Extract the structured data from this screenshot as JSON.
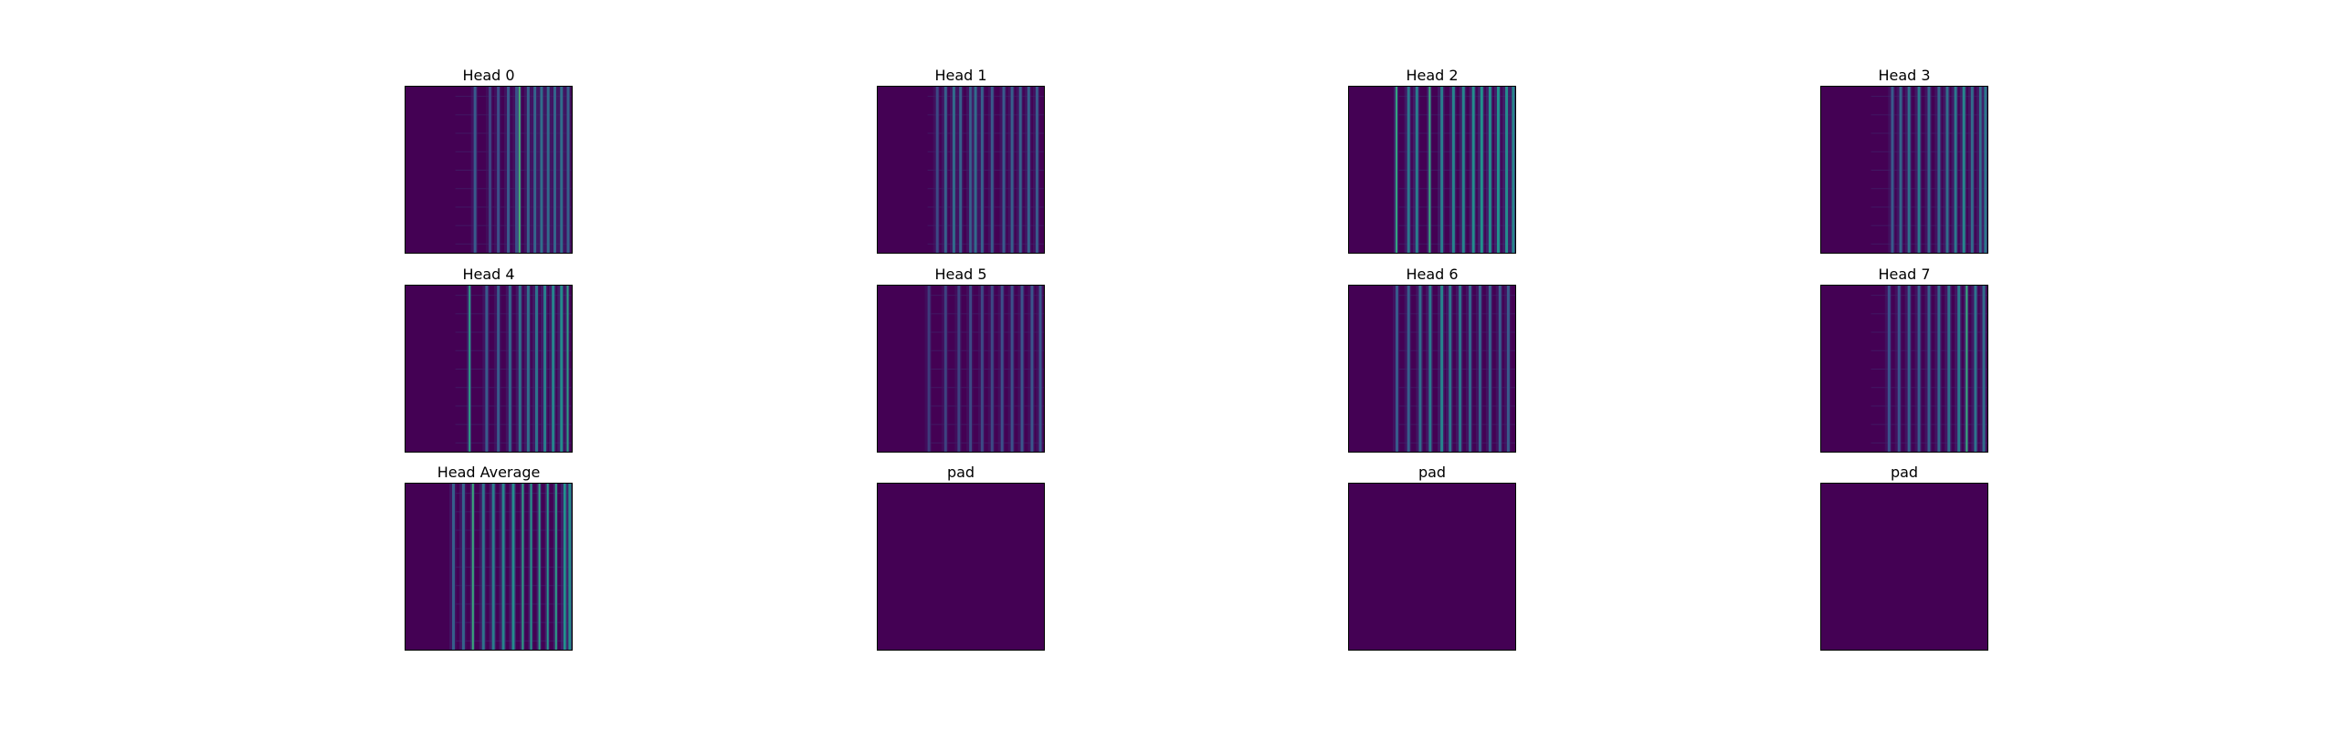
{
  "chart_data": {
    "type": "heatmap",
    "colormap": "viridis",
    "colors": {
      "low": "#440154",
      "mid_low": "#3b528b",
      "mid": "#21918c",
      "mid_high": "#5ec962",
      "high": "#fde725",
      "background": "#ffffff",
      "frame": "#000000"
    },
    "layout": {
      "rows": 3,
      "cols": 4
    },
    "axes_visible": false,
    "legend": "none",
    "panels": [
      {
        "title": "Head 0",
        "bands": [
          {
            "x": 0.41,
            "i": 0.28
          },
          {
            "x": 0.5,
            "i": 0.2
          },
          {
            "x": 0.55,
            "i": 0.24
          },
          {
            "x": 0.61,
            "i": 0.28
          },
          {
            "x": 0.66,
            "i": 0.26
          },
          {
            "x": 0.68,
            "i": 0.65
          },
          {
            "x": 0.73,
            "i": 0.3
          },
          {
            "x": 0.77,
            "i": 0.32
          },
          {
            "x": 0.81,
            "i": 0.36
          },
          {
            "x": 0.85,
            "i": 0.34
          },
          {
            "x": 0.89,
            "i": 0.32
          },
          {
            "x": 0.93,
            "i": 0.36
          },
          {
            "x": 0.97,
            "i": 0.3
          }
        ]
      },
      {
        "title": "Head 1",
        "bands": [
          {
            "x": 0.35,
            "i": 0.22
          },
          {
            "x": 0.4,
            "i": 0.3
          },
          {
            "x": 0.45,
            "i": 0.35
          },
          {
            "x": 0.49,
            "i": 0.3
          },
          {
            "x": 0.55,
            "i": 0.3
          },
          {
            "x": 0.58,
            "i": 0.35
          },
          {
            "x": 0.62,
            "i": 0.3
          },
          {
            "x": 0.68,
            "i": 0.28
          },
          {
            "x": 0.75,
            "i": 0.28
          },
          {
            "x": 0.8,
            "i": 0.3
          },
          {
            "x": 0.85,
            "i": 0.3
          },
          {
            "x": 0.9,
            "i": 0.3
          },
          {
            "x": 0.95,
            "i": 0.28
          }
        ]
      },
      {
        "title": "Head 2",
        "bands": [
          {
            "x": 0.28,
            "i": 0.58
          },
          {
            "x": 0.35,
            "i": 0.4
          },
          {
            "x": 0.4,
            "i": 0.42
          },
          {
            "x": 0.48,
            "i": 0.6
          },
          {
            "x": 0.55,
            "i": 0.42
          },
          {
            "x": 0.62,
            "i": 0.45
          },
          {
            "x": 0.68,
            "i": 0.45
          },
          {
            "x": 0.74,
            "i": 0.48
          },
          {
            "x": 0.79,
            "i": 0.5
          },
          {
            "x": 0.84,
            "i": 0.48
          },
          {
            "x": 0.89,
            "i": 0.5
          },
          {
            "x": 0.94,
            "i": 0.48
          },
          {
            "x": 0.98,
            "i": 0.45
          }
        ]
      },
      {
        "title": "Head 3",
        "bands": [
          {
            "x": 0.42,
            "i": 0.28
          },
          {
            "x": 0.47,
            "i": 0.32
          },
          {
            "x": 0.52,
            "i": 0.36
          },
          {
            "x": 0.58,
            "i": 0.4
          },
          {
            "x": 0.64,
            "i": 0.32
          },
          {
            "x": 0.7,
            "i": 0.32
          },
          {
            "x": 0.75,
            "i": 0.36
          },
          {
            "x": 0.8,
            "i": 0.4
          },
          {
            "x": 0.85,
            "i": 0.45
          },
          {
            "x": 0.9,
            "i": 0.35
          },
          {
            "x": 0.95,
            "i": 0.36
          },
          {
            "x": 0.98,
            "i": 0.4
          }
        ]
      },
      {
        "title": "Head 4",
        "bands": [
          {
            "x": 0.38,
            "i": 0.55
          },
          {
            "x": 0.48,
            "i": 0.28
          },
          {
            "x": 0.55,
            "i": 0.28
          },
          {
            "x": 0.62,
            "i": 0.32
          },
          {
            "x": 0.68,
            "i": 0.36
          },
          {
            "x": 0.73,
            "i": 0.36
          },
          {
            "x": 0.78,
            "i": 0.38
          },
          {
            "x": 0.83,
            "i": 0.42
          },
          {
            "x": 0.88,
            "i": 0.45
          },
          {
            "x": 0.93,
            "i": 0.48
          },
          {
            "x": 0.97,
            "i": 0.55
          }
        ]
      },
      {
        "title": "Head 5",
        "bands": [
          {
            "x": 0.3,
            "i": 0.18
          },
          {
            "x": 0.4,
            "i": 0.2
          },
          {
            "x": 0.48,
            "i": 0.2
          },
          {
            "x": 0.55,
            "i": 0.22
          },
          {
            "x": 0.62,
            "i": 0.22
          },
          {
            "x": 0.68,
            "i": 0.22
          },
          {
            "x": 0.74,
            "i": 0.24
          },
          {
            "x": 0.8,
            "i": 0.24
          },
          {
            "x": 0.86,
            "i": 0.26
          },
          {
            "x": 0.92,
            "i": 0.26
          },
          {
            "x": 0.97,
            "i": 0.26
          }
        ]
      },
      {
        "title": "Head 6",
        "bands": [
          {
            "x": 0.28,
            "i": 0.28
          },
          {
            "x": 0.35,
            "i": 0.3
          },
          {
            "x": 0.42,
            "i": 0.35
          },
          {
            "x": 0.48,
            "i": 0.4
          },
          {
            "x": 0.55,
            "i": 0.45
          },
          {
            "x": 0.6,
            "i": 0.38
          },
          {
            "x": 0.66,
            "i": 0.38
          },
          {
            "x": 0.72,
            "i": 0.32
          },
          {
            "x": 0.78,
            "i": 0.3
          },
          {
            "x": 0.84,
            "i": 0.3
          },
          {
            "x": 0.9,
            "i": 0.28
          },
          {
            "x": 0.95,
            "i": 0.28
          }
        ]
      },
      {
        "title": "Head 7",
        "bands": [
          {
            "x": 0.4,
            "i": 0.25
          },
          {
            "x": 0.46,
            "i": 0.25
          },
          {
            "x": 0.52,
            "i": 0.3
          },
          {
            "x": 0.58,
            "i": 0.28
          },
          {
            "x": 0.64,
            "i": 0.3
          },
          {
            "x": 0.7,
            "i": 0.32
          },
          {
            "x": 0.76,
            "i": 0.36
          },
          {
            "x": 0.82,
            "i": 0.4
          },
          {
            "x": 0.87,
            "i": 0.6
          },
          {
            "x": 0.92,
            "i": 0.38
          },
          {
            "x": 0.97,
            "i": 0.35
          }
        ]
      },
      {
        "title": "Head Average",
        "bands": [
          {
            "x": 0.28,
            "i": 0.3
          },
          {
            "x": 0.34,
            "i": 0.32
          },
          {
            "x": 0.4,
            "i": 0.6
          },
          {
            "x": 0.46,
            "i": 0.38
          },
          {
            "x": 0.52,
            "i": 0.42
          },
          {
            "x": 0.58,
            "i": 0.45
          },
          {
            "x": 0.64,
            "i": 0.48
          },
          {
            "x": 0.7,
            "i": 0.55
          },
          {
            "x": 0.75,
            "i": 0.52
          },
          {
            "x": 0.8,
            "i": 0.55
          },
          {
            "x": 0.85,
            "i": 0.52
          },
          {
            "x": 0.9,
            "i": 0.55
          },
          {
            "x": 0.95,
            "i": 0.5
          },
          {
            "x": 0.98,
            "i": 0.48
          }
        ]
      },
      {
        "title": "pad",
        "bands": []
      },
      {
        "title": "pad",
        "bands": []
      },
      {
        "title": "pad",
        "bands": []
      }
    ]
  }
}
